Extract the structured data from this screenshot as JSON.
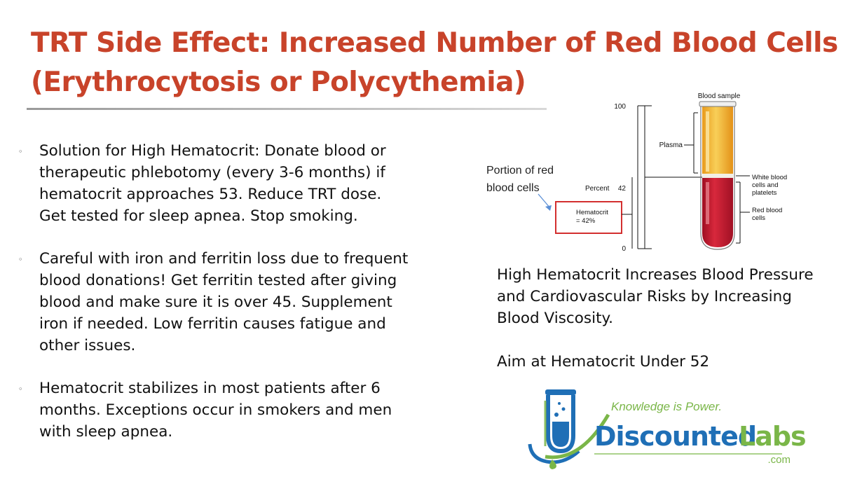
{
  "slide": {
    "title_line1": "TRT Side Effect: Increased Number of Red Blood Cells",
    "title_line2": "(Erythrocytosis or Polycythemia)"
  },
  "bullets": [
    {
      "lines": [
        "Solution for High Hematocrit:  Donate blood or",
        "therapeutic phlebotomy (every 3-6 months) if",
        "hematocrit approaches 53. Reduce TRT dose.",
        "Get  tested for sleep apnea. Stop smoking."
      ]
    },
    {
      "lines": [
        "Careful with iron and ferritin loss due to frequent",
        "blood donations! Get ferritin tested after giving",
        "blood and make sure it is over 45. Supplement",
        "iron if needed. Low ferritin causes fatigue and",
        "other issues."
      ]
    },
    {
      "lines": [
        "Hematocrit stabilizes in most patients after 6",
        "months. Exceptions occur in smokers and men",
        "with sleep apnea."
      ]
    }
  ],
  "diagram": {
    "callout_line1": "Portion of red",
    "callout_line2": "blood cells",
    "label_blood_sample": "Blood sample",
    "tick_100": "100",
    "tick_42": "42",
    "tick_0": "0",
    "label_percent": "Percent",
    "label_plasma": "Plasma",
    "label_hematocrit_line1": "Hematocrit",
    "label_hematocrit_line2": "= 42%",
    "label_wbc_line1": "White blood",
    "label_wbc_line2": "cells and",
    "label_wbc_line3": "platelets",
    "label_rbc_line1": "Red blood",
    "label_rbc_line2": "cells"
  },
  "right_text": {
    "para1_lines": [
      "High Hematocrit Increases Blood Pressure",
      "and Cardiovascular Risks by Increasing",
      "Blood Viscosity."
    ],
    "para2": "Aim at Hematocrit Under 52"
  },
  "logo": {
    "tagline": "Knowledge is Power.",
    "brand_part1": "Discounted",
    "brand_part2": "Labs",
    "domain": ".com"
  },
  "colors": {
    "title": "#c8432a",
    "logo_blue": "#1f6fb6",
    "logo_green": "#7ab648",
    "blood_red": "#c0182c",
    "plasma_yellow": "#f0b030"
  }
}
